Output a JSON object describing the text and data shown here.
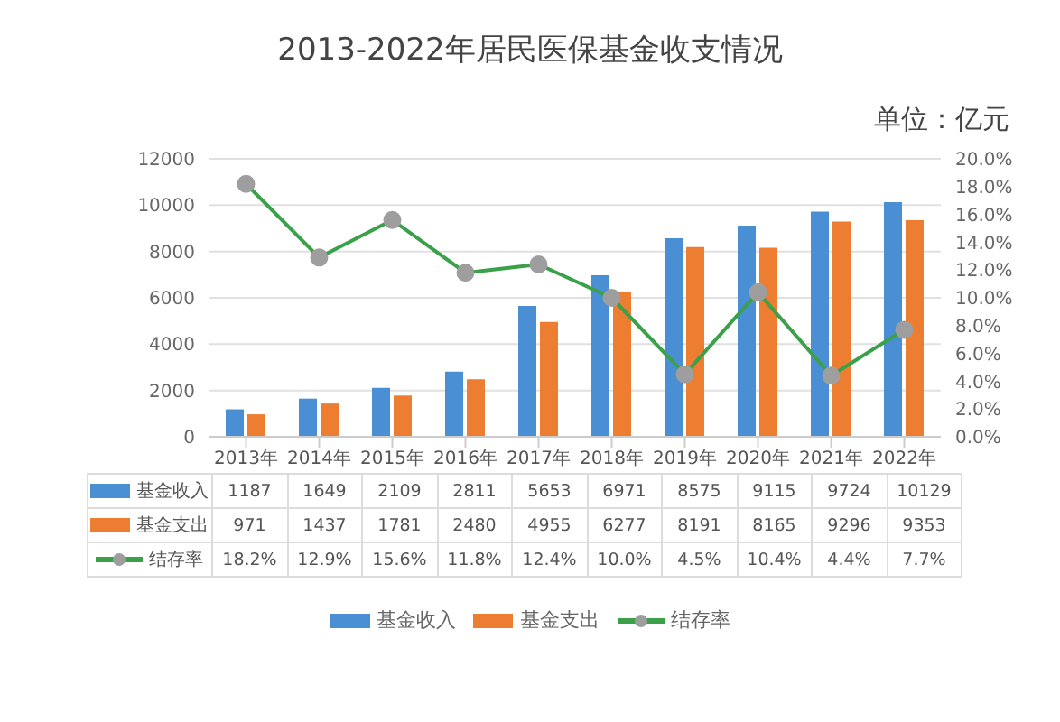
{
  "chart_data": {
    "type": "bar",
    "title": "2013-2022年居民医保基金收支情况",
    "annotations": [
      "单位：亿元"
    ],
    "categories": [
      "2013年",
      "2014年",
      "2015年",
      "2016年",
      "2017年",
      "2018年",
      "2019年",
      "2020年",
      "2021年",
      "2022年"
    ],
    "series": [
      {
        "name": "基金收入",
        "color": "#4a8fd4",
        "values": [
          1187,
          1649,
          2109,
          2811,
          5653,
          6971,
          8575,
          9115,
          9724,
          10129
        ]
      },
      {
        "name": "基金支出",
        "color": "#ed7d31",
        "values": [
          971,
          1437,
          1781,
          2480,
          4955,
          6277,
          8191,
          8165,
          9296,
          9353
        ]
      },
      {
        "name": "结存率",
        "type": "line",
        "axis": "y2",
        "color": "#3aa04a",
        "marker": "circle",
        "values": [
          18.2,
          12.9,
          15.6,
          11.8,
          12.4,
          10.0,
          4.5,
          10.4,
          4.4,
          7.7
        ],
        "value_labels": [
          "18.2%",
          "12.9%",
          "15.6%",
          "11.8%",
          "12.4%",
          "10.0%",
          "4.5%",
          "10.4%",
          "4.4%",
          "7.7%"
        ]
      }
    ],
    "ylim": [
      0,
      12000
    ],
    "yticks": [
      0,
      2000,
      4000,
      6000,
      8000,
      10000,
      12000
    ],
    "y2lim": [
      0,
      20
    ],
    "y2ticks": [
      {
        "value": 0,
        "label": "0.0%"
      },
      {
        "value": 2,
        "label": "2.0%"
      },
      {
        "value": 4,
        "label": "4.0%"
      },
      {
        "value": 6,
        "label": "6.0%"
      },
      {
        "value": 8,
        "label": "8.0%"
      },
      {
        "value": 10,
        "label": "10.0%"
      },
      {
        "value": 12,
        "label": "12.0%"
      },
      {
        "value": 14,
        "label": "14.0%"
      },
      {
        "value": 16,
        "label": "16.0%"
      },
      {
        "value": 18,
        "label": "18.0%"
      },
      {
        "value": 20,
        "label": "20.0%"
      }
    ],
    "grid": "y",
    "legend": "bottom",
    "data_labels": true
  }
}
